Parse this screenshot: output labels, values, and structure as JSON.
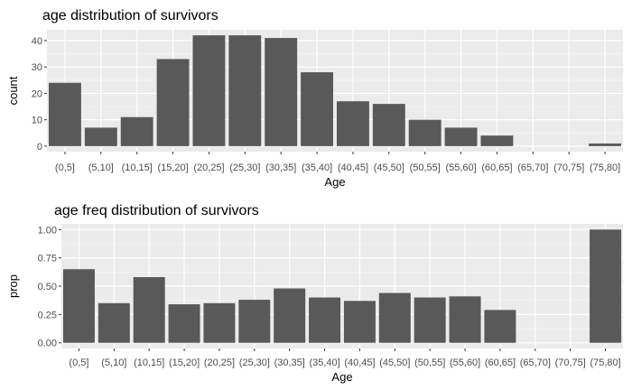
{
  "chart_data": [
    {
      "type": "bar",
      "title": "age distribution of survivors",
      "xlabel": "Age",
      "ylabel": "count",
      "categories": [
        "(0,5]",
        "(5,10]",
        "(10,15]",
        "(15,20]",
        "(20,25]",
        "(25,30]",
        "(30,35]",
        "(35,40]",
        "(40,45]",
        "(45,50]",
        "(50,55]",
        "(55,60]",
        "(60,65]",
        "(65,70]",
        "(70,75]",
        "(75,80]"
      ],
      "values": [
        24,
        7,
        11,
        33,
        42,
        42,
        41,
        28,
        17,
        16,
        10,
        7,
        4,
        0,
        0,
        1
      ],
      "ylim": [
        -2.1,
        44.1
      ],
      "yticks": [
        0,
        10,
        20,
        30,
        40
      ],
      "ytick_labels": [
        "0",
        "10",
        "20",
        "30",
        "40"
      ],
      "grid": true,
      "bar_color": "#595959",
      "panel_color": "#EBEBEB"
    },
    {
      "type": "bar",
      "title": "age freq distribution of survivors",
      "xlabel": "Age",
      "ylabel": "prop",
      "categories": [
        "(0,5]",
        "(5,10]",
        "(10,15]",
        "(15,20]",
        "(20,25]",
        "(25,30]",
        "(30,35]",
        "(35,40]",
        "(40,45]",
        "(45,50]",
        "(50,55]",
        "(55,60]",
        "(60,65]",
        "(65,70]",
        "(70,75]",
        "(75,80]"
      ],
      "values": [
        0.65,
        0.35,
        0.58,
        0.34,
        0.35,
        0.38,
        0.48,
        0.4,
        0.37,
        0.44,
        0.4,
        0.41,
        0.29,
        0,
        0,
        1.0
      ],
      "ylim": [
        -0.05,
        1.05
      ],
      "yticks": [
        0,
        0.25,
        0.5,
        0.75,
        1.0
      ],
      "ytick_labels": [
        "0.00",
        "0.25",
        "0.50",
        "0.75",
        "1.00"
      ],
      "grid": true,
      "bar_color": "#595959",
      "panel_color": "#EBEBEB"
    }
  ]
}
